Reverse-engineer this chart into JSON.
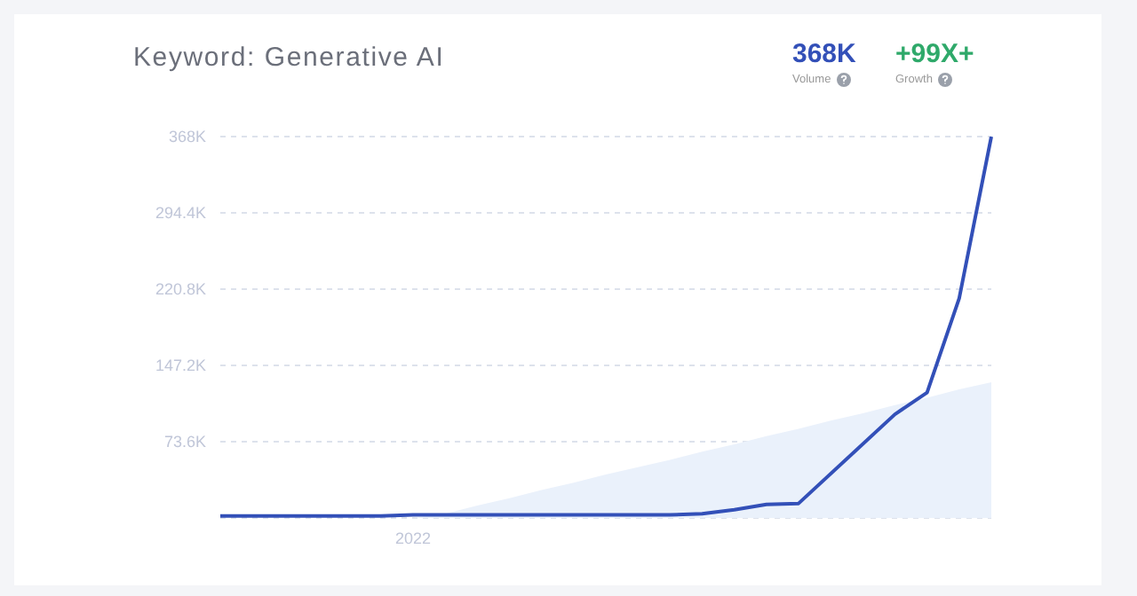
{
  "chart_data": {
    "type": "line",
    "title": "Keyword: Generative AI",
    "annotations": [
      "368K",
      "Volume",
      "+99X+",
      "Growth"
    ],
    "categories": [
      null,
      null,
      null,
      null,
      null,
      null,
      "2022",
      null,
      null,
      null,
      null,
      null,
      null,
      null,
      null,
      null,
      null,
      null,
      null,
      null,
      null,
      null,
      null,
      null,
      null
    ],
    "series": [
      {
        "type": "area",
        "color": "#eaf1fb",
        "values": [
          null,
          null,
          null,
          null,
          null,
          null,
          0,
          4,
          12,
          19,
          27,
          34,
          42,
          49,
          56,
          64,
          71,
          79,
          86,
          94,
          101,
          109,
          116,
          124,
          131
        ]
      },
      {
        "color": "#3350b8",
        "values": [
          2,
          2,
          2,
          2,
          2,
          2,
          3,
          3,
          3,
          3,
          3,
          3,
          3,
          3,
          3,
          4,
          8,
          13,
          14,
          null,
          null,
          100,
          121,
          212,
          368
        ]
      }
    ],
    "ylim": [
      0,
      368
    ],
    "yticks": [
      {
        "value": 73.6,
        "label": "73.6K"
      },
      {
        "value": 147.2,
        "label": "147.2K"
      },
      {
        "value": 220.8,
        "label": "220.8K"
      },
      {
        "value": 294.4,
        "label": "294.4K"
      },
      {
        "value": 368,
        "label": "368K"
      }
    ],
    "grid": "y",
    "marker": "none",
    "line_style": "solid"
  }
}
